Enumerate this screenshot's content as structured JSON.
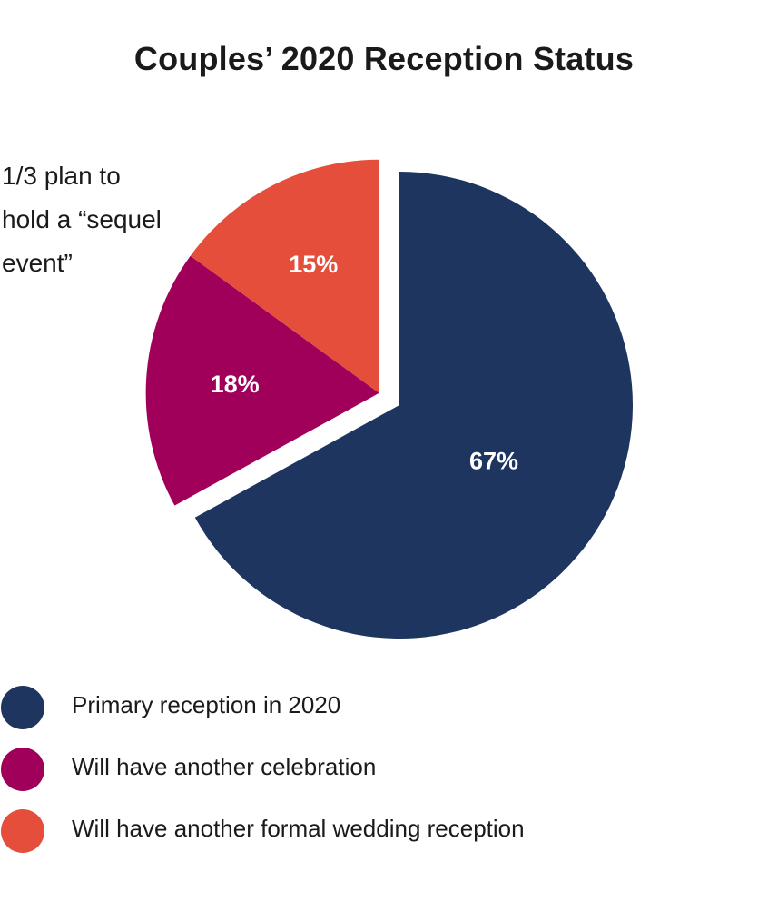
{
  "chart_data": {
    "type": "pie",
    "title": "Couples’ 2020 Reception Status",
    "annotation_lines": [
      "1/3 plan to",
      "hold a “sequel",
      "event”"
    ],
    "slices": [
      {
        "label": "Primary reception in 2020",
        "value": 67,
        "value_label": "67%",
        "color": "#1e3560",
        "exploded": false
      },
      {
        "label": "Will have another celebration",
        "value": 18,
        "value_label": "18%",
        "color": "#a0005a",
        "exploded": true
      },
      {
        "label": "Will have another formal wedding reception",
        "value": 15,
        "value_label": "15%",
        "color": "#e44e3b",
        "exploded": true
      }
    ],
    "legend_placement": "bottom-left"
  }
}
